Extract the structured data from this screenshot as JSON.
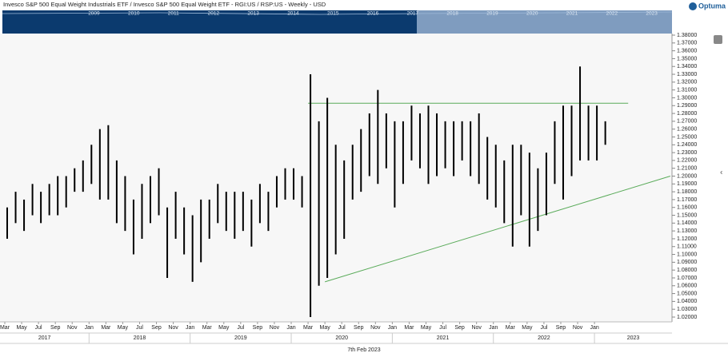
{
  "chart_data": {
    "type": "range-bar",
    "title": "Invesco S&P 500 Equal Weight Industrials ETF / Invesco S&P 500 Equal Weight ETF - RGI:US / RSP:US - Weekly - USD",
    "brand": "Optuma",
    "date_label": "7th Feb 2023",
    "navigator_years": [
      "2009",
      "2010",
      "2011",
      "2012",
      "2013",
      "2014",
      "2015",
      "2016",
      "2017",
      "2018",
      "2019",
      "2020",
      "2021",
      "2022",
      "2023"
    ],
    "years": [
      "2017",
      "2018",
      "2019",
      "2020",
      "2021",
      "2022",
      "2023"
    ],
    "x": [
      "2017-02",
      "2017-03",
      "2017-04",
      "2017-05",
      "2017-06",
      "2017-07",
      "2017-08",
      "2017-09",
      "2017-10",
      "2017-11",
      "2017-12",
      "2018-01",
      "2018-02",
      "2018-03",
      "2018-04",
      "2018-05",
      "2018-06",
      "2018-07",
      "2018-08",
      "2018-09",
      "2018-10",
      "2018-11",
      "2018-12",
      "2019-01",
      "2019-02",
      "2019-03",
      "2019-04",
      "2019-05",
      "2019-06",
      "2019-07",
      "2019-08",
      "2019-09",
      "2019-10",
      "2019-11",
      "2019-12",
      "2020-01",
      "2020-02",
      "2020-03",
      "2020-04",
      "2020-05",
      "2020-06",
      "2020-07",
      "2020-08",
      "2020-09",
      "2020-10",
      "2020-11",
      "2020-12",
      "2021-01",
      "2021-02",
      "2021-03",
      "2021-04",
      "2021-05",
      "2021-06",
      "2021-07",
      "2021-08",
      "2021-09",
      "2021-10",
      "2021-11",
      "2021-12",
      "2022-01",
      "2022-02",
      "2022-03",
      "2022-04",
      "2022-05",
      "2022-06",
      "2022-07",
      "2022-08",
      "2022-09",
      "2022-10",
      "2022-11",
      "2022-12",
      "2023-01",
      "2023-02"
    ],
    "high": [
      1.17,
      1.16,
      1.18,
      1.17,
      1.19,
      1.18,
      1.19,
      1.2,
      1.2,
      1.21,
      1.22,
      1.24,
      1.26,
      1.265,
      1.22,
      1.2,
      1.17,
      1.19,
      1.2,
      1.21,
      1.16,
      1.18,
      1.16,
      1.15,
      1.17,
      1.17,
      1.19,
      1.18,
      1.18,
      1.18,
      1.17,
      1.19,
      1.18,
      1.2,
      1.21,
      1.21,
      1.2,
      1.33,
      1.27,
      1.3,
      1.24,
      1.22,
      1.24,
      1.26,
      1.28,
      1.31,
      1.28,
      1.27,
      1.27,
      1.29,
      1.28,
      1.29,
      1.28,
      1.27,
      1.27,
      1.27,
      1.27,
      1.28,
      1.25,
      1.24,
      1.22,
      1.24,
      1.24,
      1.23,
      1.21,
      1.23,
      1.27,
      1.29,
      1.29,
      1.34,
      1.29,
      1.29,
      1.27
    ],
    "low": [
      1.12,
      1.12,
      1.14,
      1.13,
      1.15,
      1.14,
      1.15,
      1.15,
      1.16,
      1.18,
      1.18,
      1.19,
      1.17,
      1.17,
      1.14,
      1.13,
      1.1,
      1.12,
      1.14,
      1.15,
      1.07,
      1.12,
      1.1,
      1.065,
      1.09,
      1.12,
      1.14,
      1.13,
      1.12,
      1.13,
      1.11,
      1.14,
      1.13,
      1.16,
      1.17,
      1.17,
      1.16,
      1.02,
      1.06,
      1.07,
      1.1,
      1.12,
      1.17,
      1.18,
      1.2,
      1.19,
      1.21,
      1.16,
      1.19,
      1.22,
      1.21,
      1.19,
      1.2,
      1.21,
      1.2,
      1.22,
      1.2,
      1.19,
      1.17,
      1.16,
      1.14,
      1.11,
      1.15,
      1.11,
      1.13,
      1.15,
      1.19,
      1.17,
      1.2,
      1.22,
      1.22,
      1.22,
      1.24
    ],
    "color": "#000000",
    "trend_lines": [
      {
        "x": [
          "2020-03",
          "2023-05"
        ],
        "y": [
          1.293,
          1.293
        ],
        "color": "#5aab5a"
      },
      {
        "x": [
          "2020-05",
          "2023-10"
        ],
        "y": [
          1.065,
          1.2
        ],
        "color": "#5aab5a"
      }
    ],
    "xticks": [
      {
        "value": "2017-03",
        "label": "Mar"
      },
      {
        "value": "2017-05",
        "label": "May"
      },
      {
        "value": "2017-07",
        "label": "Jul"
      },
      {
        "value": "2017-09",
        "label": "Sep"
      },
      {
        "value": "2017-11",
        "label": "Nov"
      },
      {
        "value": "2018-01",
        "label": "Jan"
      },
      {
        "value": "2018-03",
        "label": "Mar"
      },
      {
        "value": "2018-05",
        "label": "May"
      },
      {
        "value": "2018-07",
        "label": "Jul"
      },
      {
        "value": "2018-09",
        "label": "Sep"
      },
      {
        "value": "2018-11",
        "label": "Nov"
      },
      {
        "value": "2019-01",
        "label": "Jan"
      },
      {
        "value": "2019-03",
        "label": "Mar"
      },
      {
        "value": "2019-05",
        "label": "May"
      },
      {
        "value": "2019-07",
        "label": "Jul"
      },
      {
        "value": "2019-09",
        "label": "Sep"
      },
      {
        "value": "2019-11",
        "label": "Nov"
      },
      {
        "value": "2020-01",
        "label": "Jan"
      },
      {
        "value": "2020-03",
        "label": "Mar"
      },
      {
        "value": "2020-05",
        "label": "May"
      },
      {
        "value": "2020-07",
        "label": "Jul"
      },
      {
        "value": "2020-09",
        "label": "Sep"
      },
      {
        "value": "2020-11",
        "label": "Nov"
      },
      {
        "value": "2021-01",
        "label": "Jan"
      },
      {
        "value": "2021-03",
        "label": "Mar"
      },
      {
        "value": "2021-05",
        "label": "May"
      },
      {
        "value": "2021-07",
        "label": "Jul"
      },
      {
        "value": "2021-09",
        "label": "Sep"
      },
      {
        "value": "2021-11",
        "label": "Nov"
      },
      {
        "value": "2022-01",
        "label": "Jan"
      },
      {
        "value": "2022-03",
        "label": "Mar"
      },
      {
        "value": "2022-05",
        "label": "May"
      },
      {
        "value": "2022-07",
        "label": "Jul"
      },
      {
        "value": "2022-09",
        "label": "Sep"
      },
      {
        "value": "2022-11",
        "label": "Nov"
      },
      {
        "value": "2023-01",
        "label": "Jan"
      }
    ],
    "ylim": [
      1.02,
      1.38
    ],
    "yticks": [
      {
        "value": 1.02,
        "label": "1.02000"
      },
      {
        "value": 1.03,
        "label": "1.03000"
      },
      {
        "value": 1.04,
        "label": "1.04000"
      },
      {
        "value": 1.05,
        "label": "1.05000"
      },
      {
        "value": 1.06,
        "label": "1.06000"
      },
      {
        "value": 1.07,
        "label": "1.07000"
      },
      {
        "value": 1.08,
        "label": "1.08000"
      },
      {
        "value": 1.09,
        "label": "1.09000"
      },
      {
        "value": 1.1,
        "label": "1.10000"
      },
      {
        "value": 1.11,
        "label": "1.11000"
      },
      {
        "value": 1.12,
        "label": "1.12000"
      },
      {
        "value": 1.13,
        "label": "1.13000"
      },
      {
        "value": 1.14,
        "label": "1.14000"
      },
      {
        "value": 1.15,
        "label": "1.15000"
      },
      {
        "value": 1.16,
        "label": "1.16000"
      },
      {
        "value": 1.17,
        "label": "1.17000"
      },
      {
        "value": 1.18,
        "label": "1.18000"
      },
      {
        "value": 1.19,
        "label": "1.19000"
      },
      {
        "value": 1.2,
        "label": "1.20000"
      },
      {
        "value": 1.21,
        "label": "1.21000"
      },
      {
        "value": 1.22,
        "label": "1.22000"
      },
      {
        "value": 1.23,
        "label": "1.23000"
      },
      {
        "value": 1.24,
        "label": "1.24000"
      },
      {
        "value": 1.25,
        "label": "1.25000"
      },
      {
        "value": 1.26,
        "label": "1.26000"
      },
      {
        "value": 1.27,
        "label": "1.27000"
      },
      {
        "value": 1.28,
        "label": "1.28000"
      },
      {
        "value": 1.29,
        "label": "1.29000"
      },
      {
        "value": 1.3,
        "label": "1.30000"
      },
      {
        "value": 1.31,
        "label": "1.31000"
      },
      {
        "value": 1.32,
        "label": "1.32000"
      },
      {
        "value": 1.33,
        "label": "1.33000"
      },
      {
        "value": 1.34,
        "label": "1.34000"
      },
      {
        "value": 1.35,
        "label": "1.35000"
      },
      {
        "value": 1.36,
        "label": "1.36000"
      },
      {
        "value": 1.37,
        "label": "1.37000"
      },
      {
        "value": 1.38,
        "label": "1.38000"
      }
    ]
  }
}
